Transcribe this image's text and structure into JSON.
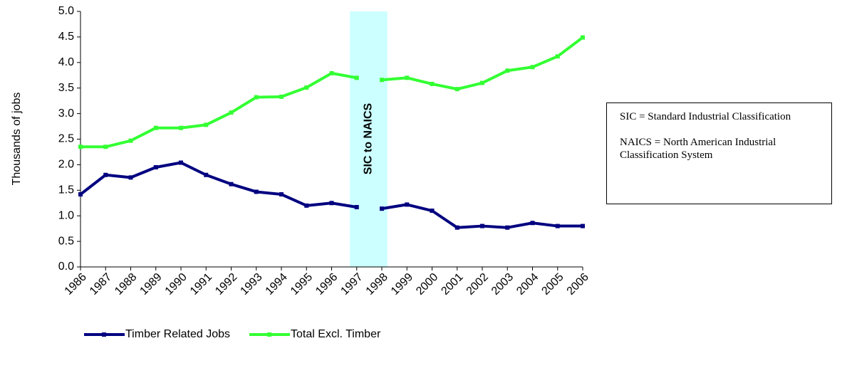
{
  "chart_data": {
    "type": "line",
    "y_label": "Thousands of jobs",
    "categories": [
      "1986",
      "1987",
      "1988",
      "1989",
      "1990",
      "1991",
      "1992",
      "1993",
      "1994",
      "1995",
      "1996",
      "1997",
      "1998",
      "1999",
      "2000",
      "2001",
      "2002",
      "2003",
      "2004",
      "2005",
      "2006"
    ],
    "series": [
      {
        "name": "Timber Related Jobs",
        "color": "#000080",
        "values": [
          1.42,
          1.8,
          1.75,
          1.95,
          2.04,
          1.8,
          1.62,
          1.47,
          1.42,
          1.2,
          1.25,
          1.17,
          1.14,
          1.22,
          1.1,
          0.77,
          0.8,
          0.77,
          0.86,
          0.8,
          0.8
        ]
      },
      {
        "name": "Total Excl. Timber",
        "color": "#33ff33",
        "values": [
          2.35,
          2.35,
          2.47,
          2.72,
          2.72,
          2.78,
          3.02,
          3.32,
          3.33,
          3.51,
          3.79,
          3.7,
          3.66,
          3.7,
          3.58,
          3.48,
          3.6,
          3.84,
          3.91,
          4.12,
          4.49
        ]
      }
    ],
    "ylim": [
      0,
      5
    ],
    "yticks": [
      {
        "value": 0,
        "label": "0.0"
      },
      0.5,
      {
        "value": 1,
        "label": "1.0"
      },
      1.5,
      {
        "value": 2,
        "label": "2.0"
      },
      2.5,
      {
        "value": 3,
        "label": "3.0"
      },
      3.5,
      {
        "value": 4,
        "label": "4.0"
      },
      4.5,
      {
        "value": 5,
        "label": "5.0"
      }
    ],
    "band": {
      "text": "SIC to NAICS",
      "from": "1997",
      "to": "1998",
      "color": "#ccffff"
    },
    "notes": [
      "SIC = Standard Industrial Classification",
      "NAICS = North American Industrial Classification System"
    ],
    "legend": "bottom"
  }
}
